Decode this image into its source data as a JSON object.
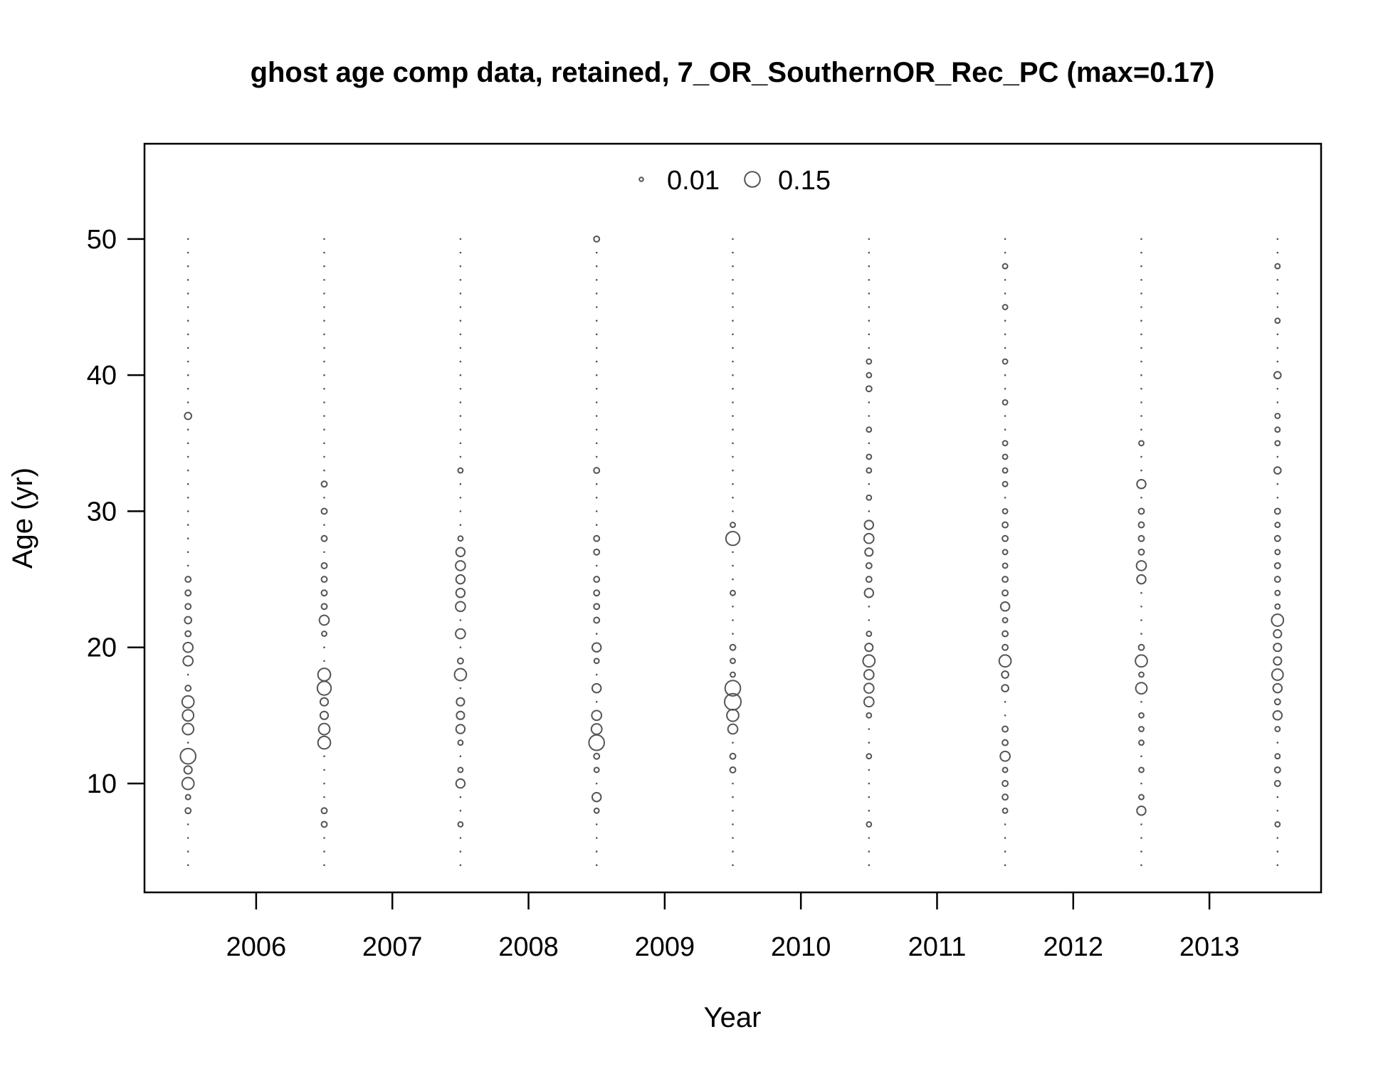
{
  "colors": {
    "background": "#ffffff",
    "frame": "#000000",
    "bubble": "#555555",
    "text": "#000000"
  },
  "chart_data": {
    "type": "scatter",
    "subtype": "bubble",
    "title": "ghost age comp data, retained, 7_OR_SouthernOR_Rec_PC (max=0.17)",
    "xlabel": "Year",
    "ylabel": "Age (yr)",
    "xlim": [
      2005.18,
      2013.82
    ],
    "ylim": [
      2.0,
      57.0
    ],
    "x_ticks": [
      "2006",
      "2007",
      "2008",
      "2009",
      "2010",
      "2011",
      "2012",
      "2013"
    ],
    "y_ticks": [
      "10",
      "20",
      "30",
      "40",
      "50"
    ],
    "grid": false,
    "bubble_shape": "open circle",
    "size_scale": "radius proportional to square root of proportion",
    "max_value": 0.17,
    "legend": {
      "placement": "top-center",
      "entries": [
        {
          "label": "0.01",
          "value": 0.01
        },
        {
          "label": "0.15",
          "value": 0.15
        }
      ]
    },
    "ages": [
      4,
      5,
      6,
      7,
      8,
      9,
      10,
      11,
      12,
      13,
      14,
      15,
      16,
      17,
      18,
      19,
      20,
      21,
      22,
      23,
      24,
      25,
      26,
      27,
      28,
      29,
      30,
      31,
      32,
      33,
      34,
      35,
      36,
      37,
      38,
      39,
      40,
      41,
      42,
      43,
      44,
      45,
      46,
      47,
      48,
      49,
      50
    ],
    "series": [
      {
        "year": 2005.5,
        "values": [
          0,
          0,
          0,
          0,
          0.02,
          0.015,
          0.09,
          0.04,
          0.15,
          0,
          0.08,
          0.08,
          0.09,
          0.02,
          0,
          0.06,
          0.06,
          0.02,
          0.03,
          0.02,
          0.02,
          0.02,
          0,
          0,
          0,
          0,
          0,
          0,
          0,
          0,
          0,
          0,
          0,
          0.03,
          0,
          0,
          0,
          0,
          0,
          0,
          0,
          0,
          0,
          0,
          0,
          0,
          0
        ]
      },
      {
        "year": 2006.5,
        "values": [
          0,
          0,
          0,
          0.02,
          0.02,
          0,
          0,
          0,
          0,
          0.1,
          0.08,
          0.04,
          0.04,
          0.12,
          0.1,
          0,
          0,
          0.015,
          0.06,
          0.02,
          0.02,
          0.02,
          0.02,
          0,
          0.02,
          0,
          0.02,
          0,
          0.02,
          0,
          0,
          0,
          0,
          0,
          0,
          0,
          0,
          0,
          0,
          0,
          0,
          0,
          0,
          0,
          0,
          0,
          0
        ]
      },
      {
        "year": 2007.5,
        "values": [
          0,
          0,
          0,
          0.015,
          0,
          0,
          0.05,
          0.015,
          0,
          0.015,
          0.05,
          0.04,
          0.04,
          0,
          0.09,
          0.02,
          0,
          0.06,
          0,
          0.06,
          0.05,
          0.05,
          0.06,
          0.05,
          0.015,
          0,
          0,
          0,
          0,
          0.015,
          0,
          0,
          0,
          0,
          0,
          0,
          0,
          0,
          0,
          0,
          0,
          0,
          0,
          0,
          0,
          0,
          0
        ]
      },
      {
        "year": 2008.5,
        "values": [
          0,
          0,
          0,
          0,
          0.015,
          0.05,
          0,
          0.015,
          0.02,
          0.15,
          0.07,
          0.06,
          0,
          0.05,
          0,
          0.015,
          0.05,
          0,
          0.02,
          0.02,
          0.02,
          0.02,
          0,
          0.02,
          0.02,
          0,
          0,
          0,
          0,
          0.02,
          0,
          0,
          0,
          0,
          0,
          0,
          0,
          0,
          0,
          0,
          0,
          0,
          0,
          0,
          0,
          0,
          0.02
        ]
      },
      {
        "year": 2009.5,
        "values": [
          0,
          0,
          0,
          0,
          0,
          0,
          0,
          0.02,
          0.02,
          0,
          0.06,
          0.09,
          0.17,
          0.15,
          0.015,
          0.015,
          0.02,
          0,
          0,
          0,
          0.015,
          0,
          0,
          0,
          0.12,
          0.015,
          0,
          0,
          0,
          0,
          0,
          0,
          0,
          0,
          0,
          0,
          0,
          0,
          0,
          0,
          0,
          0,
          0,
          0,
          0,
          0,
          0
        ]
      },
      {
        "year": 2010.5,
        "values": [
          0,
          0,
          0,
          0.015,
          0,
          0,
          0,
          0,
          0.015,
          0,
          0,
          0.015,
          0.06,
          0.06,
          0.06,
          0.09,
          0.04,
          0.015,
          0,
          0,
          0.05,
          0.02,
          0.02,
          0.04,
          0.06,
          0.05,
          0,
          0.015,
          0,
          0.015,
          0.015,
          0,
          0.015,
          0,
          0,
          0.02,
          0.015,
          0.015,
          0,
          0,
          0,
          0,
          0,
          0,
          0,
          0,
          0
        ]
      },
      {
        "year": 2011.5,
        "values": [
          0,
          0,
          0,
          0,
          0.015,
          0.02,
          0.02,
          0.015,
          0.06,
          0.02,
          0.02,
          0,
          0,
          0.03,
          0.03,
          0.09,
          0.02,
          0.02,
          0.015,
          0.05,
          0.02,
          0.02,
          0.015,
          0.015,
          0.02,
          0.02,
          0.015,
          0,
          0.015,
          0.015,
          0.015,
          0.015,
          0,
          0,
          0.015,
          0,
          0,
          0.015,
          0,
          0,
          0,
          0.015,
          0,
          0,
          0.015,
          0,
          0
        ]
      },
      {
        "year": 2012.5,
        "values": [
          0,
          0,
          0,
          0,
          0.05,
          0.015,
          0,
          0.015,
          0,
          0.015,
          0.015,
          0.015,
          0,
          0.08,
          0.015,
          0.09,
          0.02,
          0,
          0,
          0,
          0,
          0.05,
          0.06,
          0.02,
          0.02,
          0.02,
          0.02,
          0,
          0.05,
          0,
          0,
          0.015,
          0,
          0,
          0,
          0,
          0,
          0,
          0,
          0,
          0,
          0,
          0,
          0,
          0,
          0,
          0
        ]
      },
      {
        "year": 2013.5,
        "values": [
          0,
          0,
          0,
          0.015,
          0,
          0,
          0.02,
          0.02,
          0.015,
          0,
          0.015,
          0.05,
          0.02,
          0.05,
          0.08,
          0.04,
          0.04,
          0.04,
          0.09,
          0.015,
          0.015,
          0.02,
          0.02,
          0.015,
          0.02,
          0.015,
          0.02,
          0,
          0,
          0.03,
          0,
          0.015,
          0.015,
          0.015,
          0,
          0,
          0.03,
          0,
          0,
          0,
          0.015,
          0,
          0,
          0,
          0.015,
          0,
          0
        ]
      }
    ]
  }
}
